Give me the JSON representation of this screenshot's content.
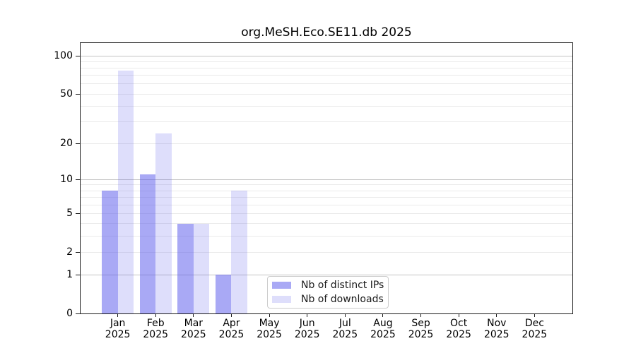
{
  "title": "org.MeSH.Eco.SE11.db 2025",
  "chart_data": {
    "type": "bar",
    "title": "org.MeSH.Eco.SE11.db 2025",
    "categories": [
      "Jan",
      "Feb",
      "Mar",
      "Apr",
      "May",
      "Jun",
      "Jul",
      "Aug",
      "Sep",
      "Oct",
      "Nov",
      "Dec"
    ],
    "year": "2025",
    "series": [
      {
        "name": "Nb of distinct IPs",
        "color": "rgba(90,90,235,0.52)",
        "values": [
          8,
          11,
          4,
          1,
          0,
          0,
          0,
          0,
          0,
          0,
          0,
          0
        ]
      },
      {
        "name": "Nb of downloads",
        "color": "rgba(90,90,235,0.20)",
        "values": [
          76,
          24,
          4,
          8,
          0,
          0,
          0,
          0,
          0,
          0,
          0,
          0
        ]
      }
    ],
    "y_scale": "log1p",
    "y_ticks": [
      0,
      1,
      2,
      5,
      10,
      20,
      50,
      100
    ],
    "y_major_gridlines": [
      1,
      10,
      100
    ],
    "y_minor_gridlines": [
      2,
      3,
      4,
      5,
      6,
      7,
      8,
      9,
      20,
      30,
      40,
      50,
      60,
      70,
      80,
      90
    ],
    "ylim": [
      0,
      128
    ],
    "grid": true,
    "legend_position": "lower center",
    "xlabel": "",
    "ylabel": ""
  },
  "colors": {
    "bar_base": "#5a5aeb",
    "major_grid": "#c3c3c3",
    "minor_grid": "#eaeaea",
    "spine": "#1a1a1a",
    "text": "#000000",
    "legend_border": "#cccccc",
    "background": "#ffffff"
  }
}
